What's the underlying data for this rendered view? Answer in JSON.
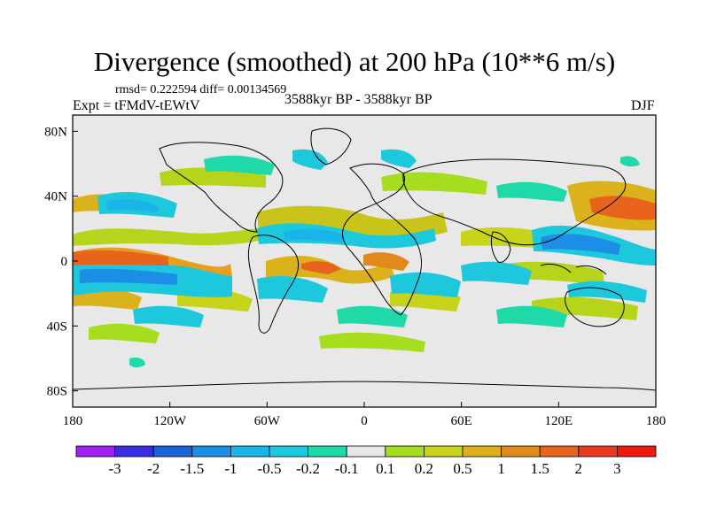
{
  "figure": {
    "title": "Divergence (smoothed) at 200 hPa (10**6 m/s)",
    "stats": "rmsd= 0.222594  diff= 0.00134569",
    "experiment": "Expt = tFMdV-tEWtV",
    "period": "3588kyr BP - 3588kyr BP",
    "season": "DJF"
  },
  "map": {
    "projection": "cylindrical equidistant",
    "background_color": "#e8e8e8",
    "lon_range": [
      -180,
      180
    ],
    "lat_range": [
      -90,
      90
    ],
    "lon_tick_labels": [
      "180",
      "120W",
      "60W",
      "0",
      "60E",
      "120E",
      "180"
    ],
    "lat_tick_labels": [
      "80N",
      "40N",
      "0",
      "40S",
      "80S"
    ]
  },
  "chart_data": {
    "type": "heatmap",
    "title": "Divergence (smoothed) at 200 hPa (10**6 m/s)",
    "x_axis": {
      "range_deg": [
        -180,
        180
      ],
      "tick_values": [
        -180,
        -120,
        -60,
        0,
        60,
        120,
        180
      ]
    },
    "y_axis": {
      "range_deg": [
        -90,
        90
      ],
      "tick_values": [
        80,
        40,
        0,
        -40,
        -80
      ]
    },
    "colorbar": {
      "levels": [
        -3,
        -2,
        -1.5,
        -1,
        -0.5,
        -0.2,
        -0.1,
        0.1,
        0.2,
        0.5,
        1,
        1.5,
        2,
        3
      ],
      "labels": [
        "-3",
        "-2",
        "-1.5",
        "-1",
        "-0.5",
        "-0.2",
        "-0.1",
        "0.1",
        "0.2",
        "0.5",
        "1",
        "1.5",
        "2",
        "3"
      ],
      "colors": [
        "#a020f0",
        "#3a2fe0",
        "#1d63d8",
        "#1d8ee6",
        "#19b5e8",
        "#1ec8dc",
        "#1fd9a8",
        "#e8e8e8",
        "#a6dd1e",
        "#c8d41a",
        "#dcb21c",
        "#e08a1c",
        "#e8641c",
        "#e83a1c",
        "#ee1a10"
      ]
    },
    "anomaly_regions": [
      {
        "lon": -165,
        "lat": 0,
        "value": 1.5
      },
      {
        "lon": -140,
        "lat": -15,
        "value": -0.5
      },
      {
        "lon": -160,
        "lat": 30,
        "value": 0.5
      },
      {
        "lon": -125,
        "lat": 33,
        "value": -0.5
      },
      {
        "lon": -30,
        "lat": 20,
        "value": -0.5
      },
      {
        "lon": 15,
        "lat": 0,
        "value": 0.5
      },
      {
        "lon": -50,
        "lat": -25,
        "value": -0.5
      },
      {
        "lon": 80,
        "lat": 5,
        "value": 0.5
      },
      {
        "lon": 120,
        "lat": 10,
        "value": -0.5
      },
      {
        "lon": 160,
        "lat": 28,
        "value": 1
      },
      {
        "lon": 60,
        "lat": 40,
        "value": -0.2
      }
    ]
  }
}
